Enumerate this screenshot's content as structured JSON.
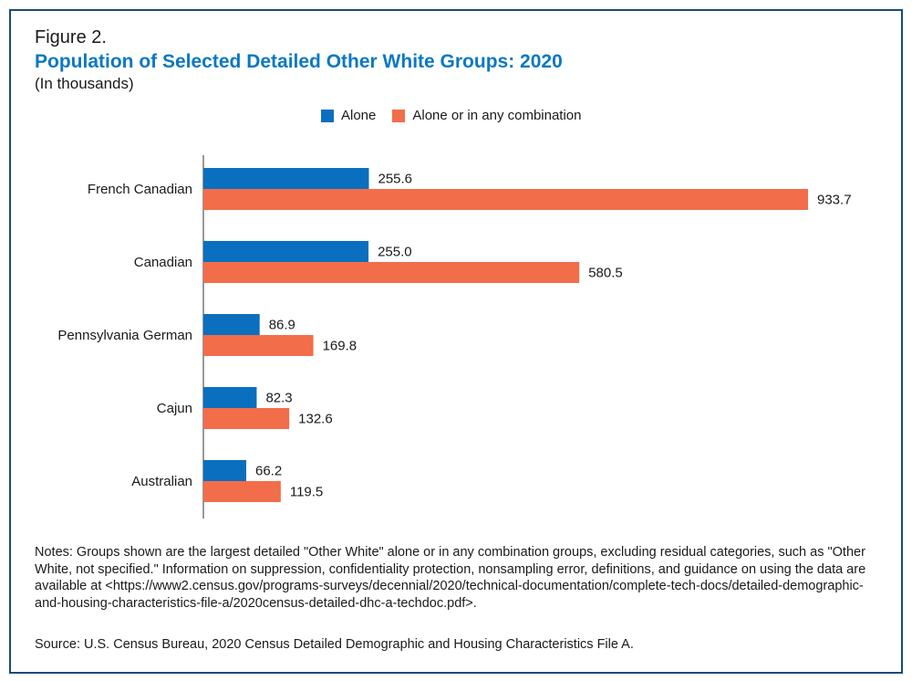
{
  "figure_label": "Figure 2.",
  "title": "Population of Selected Detailed Other White Groups: 2020",
  "subtitle": "(In thousands)",
  "colors": {
    "alone": "#0a6fbf",
    "combination": "#f26d4a",
    "title": "#0a78c2",
    "border": "#1a4a7a"
  },
  "chart_data": {
    "type": "bar",
    "orientation": "horizontal",
    "title": "Population of Selected Detailed Other White Groups: 2020",
    "subtitle": "(In thousands)",
    "categories": [
      "French Canadian",
      "Canadian",
      "Pennsylvania German",
      "Cajun",
      "Australian"
    ],
    "series": [
      {
        "name": "Alone",
        "values": [
          255.6,
          255.0,
          86.9,
          82.3,
          66.2
        ],
        "labels": [
          "255.6",
          "255.0",
          "86.9",
          "82.3",
          "66.2"
        ]
      },
      {
        "name": "Alone or in any combination",
        "values": [
          933.7,
          580.5,
          169.8,
          132.6,
          119.5
        ],
        "labels": [
          "933.7",
          "580.5",
          "169.8",
          "132.6",
          "119.5"
        ]
      }
    ],
    "xlim": [
      0,
      933.7
    ],
    "grid": false,
    "legend": "top-center",
    "data_labels": true
  },
  "notes": "Notes: Groups shown are the largest detailed \"Other White\" alone or in any combination groups, excluding residual categories, such as \"Other White, not specified.\" Information on suppression, confidentiality protection, nonsampling error, definitions, and guidance on using the data are available at <https://www2.census.gov/programs-surveys/decennial/2020/technical-documentation/complete-tech-docs/detailed-demographic-and-housing-characteristics-file-a/2020census-detailed-dhc-a-techdoc.pdf>.",
  "source": "Source: U.S. Census Bureau, 2020 Census Detailed Demographic and Housing Characteristics File A."
}
